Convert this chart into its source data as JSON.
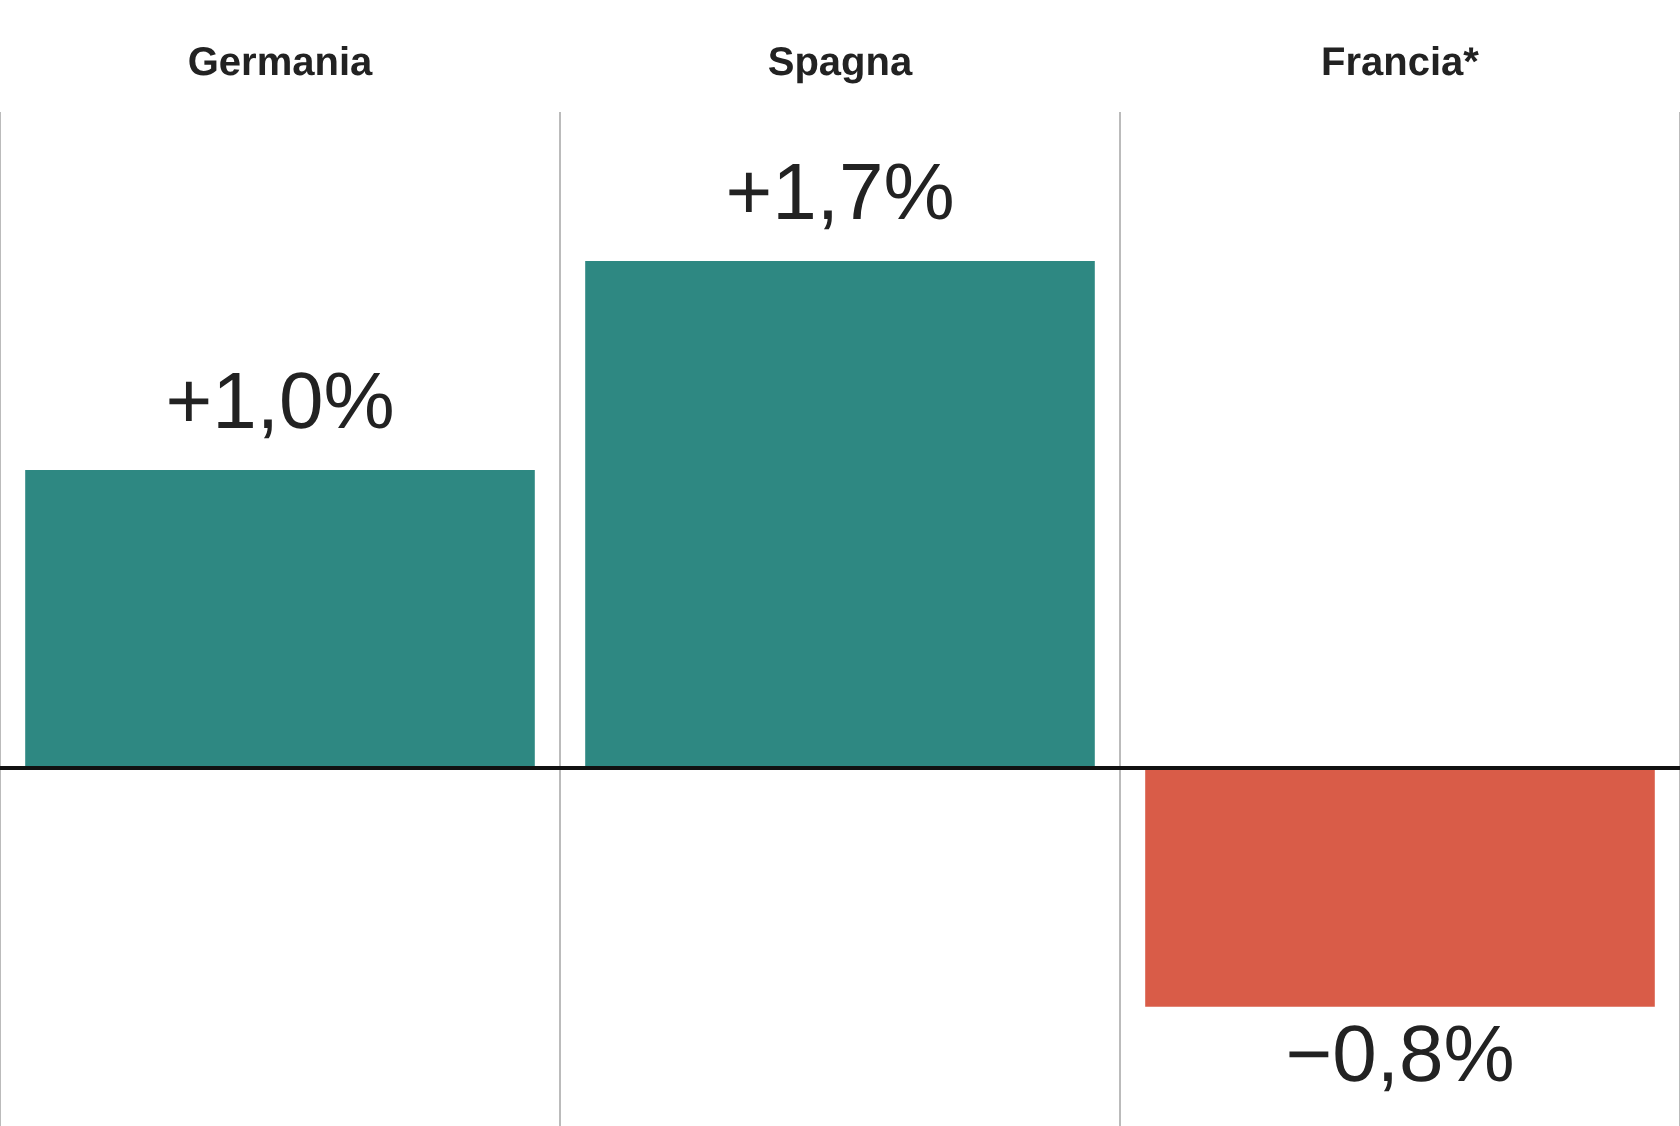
{
  "chart_data": {
    "type": "bar",
    "categories": [
      "Germania",
      "Spagna",
      "Francia*"
    ],
    "values": [
      1.0,
      1.7,
      -0.8
    ],
    "colors": [
      "#2e8882",
      "#2e8882",
      "#d95c48"
    ],
    "value_labels": [
      "+1,0%",
      "+1,7%",
      "−0,8%"
    ],
    "ylim": [
      -1.2,
      2.2
    ],
    "ref_lines": [
      {
        "axis": "y",
        "value": 0,
        "color": "#111111"
      }
    ],
    "grid": "x",
    "legend": false
  }
}
